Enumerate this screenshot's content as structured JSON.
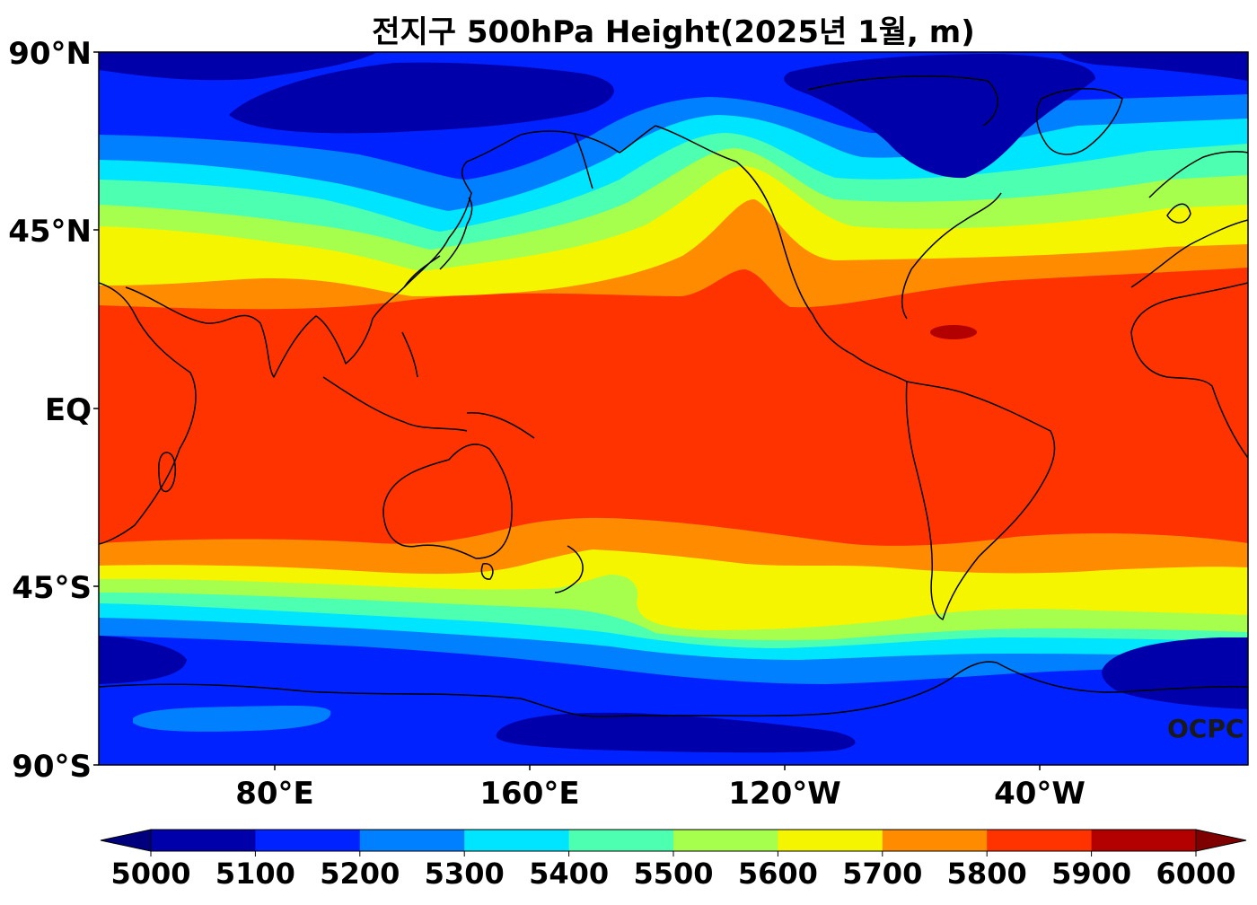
{
  "title": "전지구 500hPa Height(2025년 1월, m)",
  "lat_labels": [
    "90°N",
    "45°N",
    "EQ",
    "45°S",
    "90°S"
  ],
  "lon_labels": [
    "80°E",
    "160°E",
    "120°W",
    "40°W"
  ],
  "colorbar": {
    "ticks": [
      "5000",
      "5100",
      "5200",
      "5300",
      "5400",
      "5500",
      "5600",
      "5700",
      "5800",
      "5900",
      "6000"
    ],
    "colors": [
      "#0000aa",
      "#0022ff",
      "#0080ff",
      "#00e5ff",
      "#4dffb0",
      "#a6ff4d",
      "#f5f500",
      "#ff8c00",
      "#ff3300",
      "#b30000"
    ],
    "under_color": "#00007f",
    "over_color": "#7f0000"
  },
  "watermark": "OCPC"
}
